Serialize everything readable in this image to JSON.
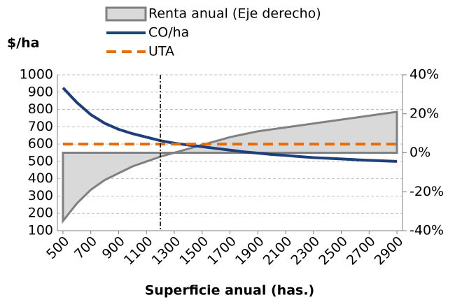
{
  "chart_data": {
    "type": "line",
    "ylabel": "$/ha",
    "xlabel": "Superficie anual (has.)",
    "x": [
      500,
      600,
      700,
      800,
      900,
      1000,
      1100,
      1200,
      1300,
      1400,
      1500,
      1600,
      1700,
      1800,
      1900,
      2000,
      2100,
      2200,
      2300,
      2400,
      2500,
      2600,
      2700,
      2800,
      2900
    ],
    "xlim": [
      460,
      2940
    ],
    "xticks": [
      500,
      700,
      900,
      1100,
      1300,
      1500,
      1700,
      1900,
      2100,
      2300,
      2500,
      2700,
      2900
    ],
    "ylim": [
      100,
      1000
    ],
    "yticks": [
      100,
      200,
      300,
      400,
      500,
      600,
      700,
      800,
      900,
      1000
    ],
    "y2lim": [
      -40,
      40
    ],
    "y2ticks": [
      {
        "value": -40,
        "label": "-40%"
      },
      {
        "value": -20,
        "label": "-20%"
      },
      {
        "value": 0,
        "label": "0%"
      },
      {
        "value": 20,
        "label": "20%"
      },
      {
        "value": 40,
        "label": "40%"
      }
    ],
    "grid": true,
    "vline_x": 1200,
    "series": [
      {
        "name": "Renta anual (Eje derecho)",
        "kind": "area",
        "axis": "y2",
        "color": "#d9d9d9",
        "edge_color": "#808080",
        "values": [
          -35,
          -26,
          -19,
          -14,
          -10.5,
          -7,
          -4.5,
          -2,
          0,
          2,
          4,
          6,
          8,
          9.5,
          11,
          12,
          13,
          14,
          15,
          16,
          17,
          18,
          19,
          20,
          21
        ]
      },
      {
        "name": "CO/ha",
        "kind": "line",
        "color": "#1f3f7a",
        "values": [
          925,
          840,
          770,
          720,
          685,
          660,
          640,
          620,
          605,
          595,
          585,
          575,
          565,
          555,
          548,
          540,
          535,
          528,
          522,
          518,
          514,
          510,
          506,
          503,
          500
        ]
      },
      {
        "name": "UTA",
        "kind": "dashed",
        "color": "#e46c0a",
        "values": [
          600,
          600,
          600,
          600,
          600,
          600,
          600,
          600,
          600,
          600,
          600,
          600,
          600,
          600,
          600,
          600,
          600,
          600,
          600,
          600,
          600,
          600,
          600,
          600,
          600
        ]
      }
    ]
  }
}
